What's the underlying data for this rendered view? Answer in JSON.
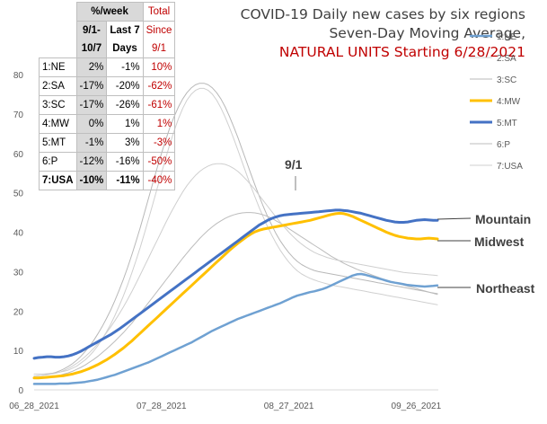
{
  "chart_data": {
    "type": "line",
    "title_lines": [
      {
        "text": "COVID-19 Daily new cases by six regions",
        "color": "#404040"
      },
      {
        "text": "Seven-Day Moving Average,",
        "color": "#404040"
      },
      {
        "text": "NATURAL UNITS Starting 6/28/2021",
        "color": "#c00000"
      }
    ],
    "ylim": [
      0,
      80
    ],
    "yticks": [
      0,
      10,
      20,
      30,
      40,
      50,
      60,
      70,
      80
    ],
    "grid": false,
    "legend_position": "right",
    "x_start": "06_28_2021",
    "x_tick_labels": [
      "06_28_2021",
      "07_28_2021",
      "08_27_2021",
      "09_26_2021"
    ],
    "annotations": {
      "date_marker": "9/1",
      "mountain": "Mountain",
      "midwest": "Midwest",
      "northeast": "Northeast"
    },
    "series": [
      {
        "name": "1:NE",
        "color": "#6fa1d2",
        "width": 2.5,
        "values": [
          1.5,
          1.5,
          1.5,
          1.5,
          1.5,
          1.5,
          1.6,
          1.6,
          1.6,
          1.7,
          1.8,
          1.9,
          2.0,
          2.2,
          2.4,
          2.6,
          2.9,
          3.2,
          3.5,
          3.8,
          4.2,
          4.6,
          5.0,
          5.4,
          5.8,
          6.2,
          6.6,
          7.0,
          7.5,
          8.0,
          8.5,
          9.0,
          9.5,
          10.0,
          10.5,
          11.0,
          11.5,
          12.0,
          12.6,
          13.2,
          13.8,
          14.4,
          15.0,
          15.5,
          16.0,
          16.5,
          17.0,
          17.5,
          18.0,
          18.4,
          18.8,
          19.2,
          19.6,
          20.0,
          20.4,
          20.8,
          21.2,
          21.6,
          22.0,
          22.5,
          23.0,
          23.5,
          23.9,
          24.2,
          24.5,
          24.8,
          25.0,
          25.3,
          25.6,
          26.0,
          26.5,
          27.0,
          27.5,
          28.0,
          28.5,
          29.0,
          29.3,
          29.4,
          29.2,
          28.9,
          28.6,
          28.3,
          28.0,
          27.7,
          27.4,
          27.2,
          27.0,
          26.8,
          26.6,
          26.5,
          26.4,
          26.3,
          26.2,
          26.3,
          26.4,
          26.5
        ]
      },
      {
        "name": "2:SA",
        "color": "#d0d0d0",
        "width": 1,
        "values": [
          4.0,
          4.0,
          4.0,
          4.1,
          4.2,
          4.3,
          4.5,
          4.7,
          5.0,
          5.5,
          6.0,
          6.8,
          7.6,
          8.6,
          9.8,
          11.2,
          12.8,
          14.6,
          16.6,
          18.8,
          21.2,
          23.8,
          26.6,
          29.6,
          32.8,
          36.2,
          39.8,
          43.5,
          47.3,
          51.2,
          55.0,
          58.8,
          62.4,
          65.8,
          68.8,
          71.4,
          73.5,
          75.0,
          76.0,
          76.5,
          76.5,
          76.0,
          75.0,
          73.5,
          71.5,
          69.2,
          66.6,
          63.8,
          60.8,
          57.8,
          54.8,
          51.8,
          49.0,
          46.3,
          43.8,
          41.4,
          39.2,
          37.2,
          35.4,
          33.8,
          32.4,
          31.2,
          30.2,
          29.4,
          28.8,
          28.3,
          27.9,
          27.5,
          27.2,
          26.9,
          26.6,
          26.4,
          26.2,
          26.0,
          25.8,
          25.6,
          25.4,
          25.2,
          25.0,
          24.8,
          24.6,
          24.4,
          24.2,
          24.0,
          23.8,
          23.6,
          23.4,
          23.2,
          23.0,
          22.8,
          22.6,
          22.4,
          22.2,
          22.0,
          21.8,
          21.6
        ]
      },
      {
        "name": "3:SC",
        "color": "#b8b8b8",
        "width": 1,
        "values": [
          3.5,
          3.6,
          3.7,
          3.9,
          4.1,
          4.4,
          4.8,
          5.3,
          5.9,
          6.6,
          7.5,
          8.5,
          9.7,
          11.0,
          12.5,
          14.2,
          16.0,
          18.0,
          20.2,
          22.6,
          25.2,
          28.0,
          31.0,
          34.2,
          37.6,
          41.2,
          45.0,
          48.8,
          52.6,
          56.4,
          60.0,
          63.4,
          66.6,
          69.4,
          71.8,
          73.8,
          75.4,
          76.6,
          77.4,
          77.8,
          77.8,
          77.4,
          76.6,
          75.4,
          73.8,
          71.8,
          69.4,
          66.8,
          64.0,
          61.0,
          58.0,
          55.0,
          52.0,
          49.2,
          46.5,
          44.0,
          41.7,
          39.6,
          37.8,
          36.2,
          34.8,
          33.6,
          32.6,
          31.8,
          31.2,
          30.7,
          30.3,
          30.0,
          29.8,
          29.6,
          29.4,
          29.2,
          29.0,
          28.8,
          28.6,
          28.4,
          28.2,
          28.0,
          27.8,
          27.6,
          27.4,
          27.2,
          27.0,
          26.8,
          26.6,
          26.4,
          26.2,
          26.0,
          25.8,
          25.6,
          25.4,
          25.2,
          25.0,
          24.8,
          24.6,
          24.4
        ]
      },
      {
        "name": "4:MW",
        "color": "#ffc000",
        "width": 3,
        "values": [
          3.0,
          3.0,
          3.1,
          3.2,
          3.3,
          3.4,
          3.5,
          3.6,
          3.8,
          4.0,
          4.3,
          4.6,
          5.0,
          5.4,
          5.9,
          6.4,
          7.0,
          7.6,
          8.3,
          9.0,
          9.8,
          10.6,
          11.5,
          12.4,
          13.4,
          14.4,
          15.4,
          16.4,
          17.4,
          18.4,
          19.4,
          20.4,
          21.4,
          22.4,
          23.4,
          24.4,
          25.4,
          26.4,
          27.4,
          28.4,
          29.4,
          30.4,
          31.4,
          32.4,
          33.4,
          34.4,
          35.4,
          36.3,
          37.2,
          38.0,
          38.8,
          39.5,
          40.1,
          40.5,
          40.8,
          41.0,
          41.2,
          41.4,
          41.6,
          41.8,
          42.0,
          42.2,
          42.4,
          42.6,
          42.8,
          43.0,
          43.3,
          43.6,
          43.9,
          44.2,
          44.5,
          44.7,
          44.8,
          44.7,
          44.4,
          44.0,
          43.5,
          43.0,
          42.5,
          42.0,
          41.5,
          41.0,
          40.5,
          40.0,
          39.6,
          39.2,
          38.9,
          38.7,
          38.5,
          38.4,
          38.3,
          38.3,
          38.4,
          38.5,
          38.4,
          38.3
        ]
      },
      {
        "name": "5:MT",
        "color": "#4472c4",
        "width": 3,
        "values": [
          8.0,
          8.2,
          8.3,
          8.4,
          8.4,
          8.3,
          8.3,
          8.4,
          8.6,
          8.9,
          9.3,
          9.8,
          10.4,
          11.0,
          11.6,
          12.2,
          12.8,
          13.4,
          14.0,
          14.7,
          15.4,
          16.2,
          17.0,
          17.8,
          18.6,
          19.4,
          20.2,
          21.0,
          21.8,
          22.6,
          23.4,
          24.2,
          25.0,
          25.8,
          26.6,
          27.4,
          28.2,
          29.0,
          29.8,
          30.6,
          31.4,
          32.2,
          33.0,
          33.8,
          34.6,
          35.4,
          36.2,
          37.0,
          37.8,
          38.6,
          39.4,
          40.2,
          41.0,
          41.8,
          42.4,
          43.0,
          43.5,
          43.9,
          44.2,
          44.4,
          44.5,
          44.6,
          44.7,
          44.8,
          44.9,
          45.0,
          45.1,
          45.2,
          45.3,
          45.4,
          45.5,
          45.6,
          45.6,
          45.5,
          45.4,
          45.2,
          45.0,
          44.8,
          44.5,
          44.2,
          43.9,
          43.6,
          43.3,
          43.0,
          42.8,
          42.6,
          42.5,
          42.5,
          42.6,
          42.8,
          43.0,
          43.1,
          43.2,
          43.1,
          43.0,
          43.0
        ]
      },
      {
        "name": "6:P",
        "color": "#bcbcbc",
        "width": 1,
        "values": [
          3.0,
          3.0,
          3.1,
          3.2,
          3.3,
          3.5,
          3.7,
          4.0,
          4.3,
          4.7,
          5.2,
          5.7,
          6.3,
          7.0,
          7.7,
          8.5,
          9.4,
          10.3,
          11.3,
          12.3,
          13.4,
          14.5,
          15.7,
          16.9,
          18.2,
          19.5,
          20.8,
          22.2,
          23.6,
          25.0,
          26.4,
          27.8,
          29.2,
          30.6,
          32.0,
          33.4,
          34.7,
          36.0,
          37.2,
          38.4,
          39.5,
          40.5,
          41.4,
          42.2,
          42.9,
          43.5,
          44.0,
          44.4,
          44.7,
          44.9,
          45.0,
          45.0,
          44.9,
          44.7,
          44.4,
          44.0,
          43.5,
          42.9,
          42.3,
          41.6,
          40.9,
          40.2,
          39.5,
          38.8,
          38.1,
          37.4,
          36.7,
          36.0,
          35.3,
          34.6,
          33.9,
          33.3,
          32.7,
          32.1,
          31.6,
          31.1,
          30.6,
          30.2,
          29.8,
          29.4,
          29.0,
          28.6,
          28.2,
          27.8,
          27.5,
          27.2,
          26.9,
          26.6,
          26.3,
          26.0,
          25.7,
          25.4,
          25.1,
          24.8,
          24.5,
          24.2
        ]
      },
      {
        "name": "7:USA",
        "color": "#cfcfcf",
        "width": 1,
        "values": [
          3.5,
          3.6,
          3.7,
          3.8,
          4.0,
          4.2,
          4.5,
          4.9,
          5.4,
          6.0,
          6.7,
          7.5,
          8.4,
          9.4,
          10.5,
          11.7,
          13.0,
          14.4,
          15.9,
          17.5,
          19.2,
          21.0,
          22.9,
          24.9,
          27.0,
          29.2,
          31.4,
          33.6,
          35.8,
          38.0,
          40.2,
          42.4,
          44.5,
          46.5,
          48.4,
          50.2,
          51.8,
          53.2,
          54.4,
          55.4,
          56.2,
          56.8,
          57.2,
          57.4,
          57.4,
          57.2,
          56.8,
          56.2,
          55.4,
          54.4,
          53.3,
          52.1,
          50.8,
          49.4,
          48.0,
          46.6,
          45.2,
          43.8,
          42.5,
          41.2,
          40.0,
          38.9,
          37.9,
          37.0,
          36.2,
          35.5,
          34.9,
          34.4,
          34.0,
          33.6,
          33.3,
          33.0,
          32.8,
          32.6,
          32.4,
          32.2,
          32.0,
          31.8,
          31.6,
          31.4,
          31.2,
          31.0,
          30.8,
          30.6,
          30.4,
          30.2,
          30.0,
          29.8,
          29.7,
          29.6,
          29.5,
          29.4,
          29.3,
          29.2,
          29.1,
          29.0
        ]
      }
    ]
  },
  "table": {
    "header1": {
      "week": "%/week",
      "total": "Total"
    },
    "header2": {
      "since91": "9/1-",
      "last7": "Last 7",
      "since": "Since"
    },
    "header3": {
      "oct7": "10/7",
      "days": "Days",
      "date": "9/1"
    },
    "rows": [
      {
        "region": "1:NE",
        "c1": "2%",
        "c2": "-1%",
        "c3": "10%",
        "bold": false
      },
      {
        "region": "2:SA",
        "c1": "-17%",
        "c2": "-20%",
        "c3": "-62%",
        "bold": false
      },
      {
        "region": "3:SC",
        "c1": "-17%",
        "c2": "-26%",
        "c3": "-61%",
        "bold": false
      },
      {
        "region": "4:MW",
        "c1": "0%",
        "c2": "1%",
        "c3": "1%",
        "bold": false
      },
      {
        "region": "5:MT",
        "c1": "-1%",
        "c2": "3%",
        "c3": "-3%",
        "bold": false
      },
      {
        "region": "6:P",
        "c1": "-12%",
        "c2": "-16%",
        "c3": "-50%",
        "bold": false
      },
      {
        "region": "7:USA",
        "c1": "-10%",
        "c2": "-11%",
        "c3": "-40%",
        "bold": true
      }
    ]
  }
}
